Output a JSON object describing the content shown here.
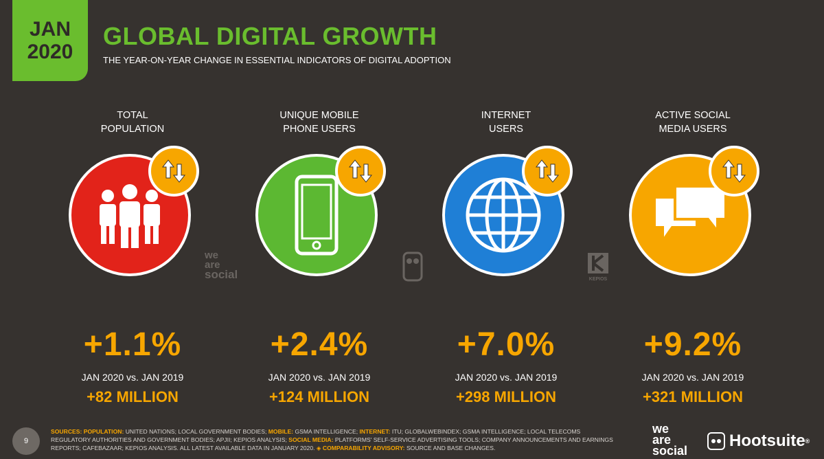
{
  "header": {
    "month": "JAN",
    "year": "2020",
    "title": "GLOBAL DIGITAL GROWTH",
    "subtitle": "THE YEAR-ON-YEAR CHANGE IN ESSENTIAL INDICATORS OF DIGITAL ADOPTION"
  },
  "colors": {
    "background": "#36322f",
    "green": "#6abd2e",
    "orange": "#f7a600",
    "red": "#e2231a",
    "phone_green": "#5cb832",
    "blue": "#1f7fd6"
  },
  "indicators": [
    {
      "label_line1": "TOTAL",
      "label_line2": "POPULATION",
      "icon": "people-icon",
      "color": "#e2231a",
      "pct": "+1.1%",
      "comparison": "JAN 2020 vs. JAN 2019",
      "absolute": "+82 MILLION"
    },
    {
      "label_line1": "UNIQUE MOBILE",
      "label_line2": "PHONE USERS",
      "icon": "mobile-phone-icon",
      "color": "#5cb832",
      "pct": "+2.4%",
      "comparison": "JAN 2020 vs. JAN 2019",
      "absolute": "+124 MILLION"
    },
    {
      "label_line1": "INTERNET",
      "label_line2": "USERS",
      "icon": "globe-icon",
      "color": "#1f7fd6",
      "pct": "+7.0%",
      "comparison": "JAN 2020 vs. JAN 2019",
      "absolute": "+298 MILLION"
    },
    {
      "label_line1": "ACTIVE SOCIAL",
      "label_line2": "MEDIA USERS",
      "icon": "chat-bubbles-icon",
      "color": "#f7a600",
      "pct": "+9.2%",
      "comparison": "JAN 2020 vs. JAN 2019",
      "absolute": "+321 MILLION"
    }
  ],
  "watermarks": {
    "we_are_social_1": "we",
    "we_are_social_2": "are",
    "we_are_social_3": "social",
    "kepios": "KEPIOS"
  },
  "footer": {
    "page_number": "9",
    "sources_label": "SOURCES:",
    "population_label": "POPULATION:",
    "population_text": "UNITED NATIONS; LOCAL GOVERNMENT BODIES;",
    "mobile_label": "MOBILE:",
    "mobile_text": "GSMA INTELLIGENCE;",
    "internet_label": "INTERNET:",
    "internet_text": "ITU; GLOBALWEBINDEX; GSMA INTELLIGENCE; LOCAL TELECOMS REGULATORY AUTHORITIES AND GOVERNMENT BODIES; APJII; KEPIOS ANALYSIS;",
    "social_label": "SOCIAL MEDIA:",
    "social_text": "PLATFORMS' SELF-SERVICE ADVERTISING TOOLS; COMPANY ANNOUNCEMENTS AND EARNINGS REPORTS; CAFEBAZAAR; KEPIOS ANALYSIS. ALL LATEST AVAILABLE DATA IN JANUARY 2020.",
    "advisory_label": "◈ COMPARABILITY ADVISORY:",
    "advisory_text": "SOURCE AND BASE CHANGES.",
    "logo_we": "we",
    "logo_are": "are",
    "logo_social": "social",
    "logo_hootsuite": "Hootsuite",
    "registered": "®"
  }
}
